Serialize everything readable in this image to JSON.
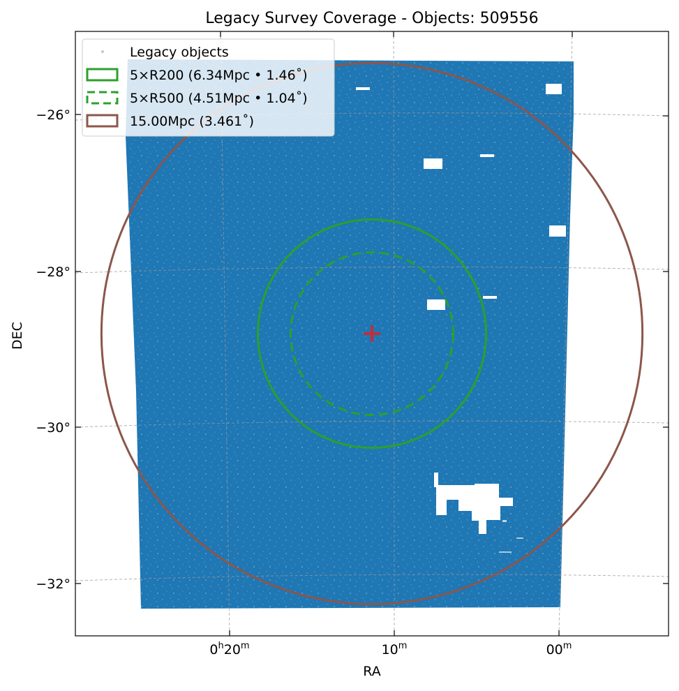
{
  "chart_data": {
    "type": "scatter",
    "title": "Legacy Survey Coverage - Objects: 509556",
    "xlabel": "RA",
    "ylabel": "DEC",
    "projection": "sky (RA decreasing to the right)",
    "grid": true,
    "legend_position": "top-left",
    "x_ticks": [
      {
        "label_main": "0",
        "label_sup1": "h",
        "label_mid": "20",
        "label_sup2": "m",
        "ra_min": 20
      },
      {
        "label_main": "",
        "label_sup1": "",
        "label_mid": "10",
        "label_sup2": "m",
        "ra_min": 10
      },
      {
        "label_main": "",
        "label_sup1": "",
        "label_mid": "00",
        "label_sup2": "m",
        "ra_min": 0
      }
    ],
    "y_ticks": [
      {
        "label": "−26°",
        "dec": -26
      },
      {
        "label": "−28°",
        "dec": -28
      },
      {
        "label": "−30°",
        "dec": -30
      },
      {
        "label": "−32°",
        "dec": -32
      }
    ],
    "center": {
      "ra_min": 11.4,
      "dec": -28.8,
      "marker": "+",
      "color": "#d62728"
    },
    "coverage": {
      "ra_min_range": [
        -0.7,
        26.5
      ],
      "dec_range": [
        -32.3,
        -25.25
      ],
      "color": "#1f77b4"
    },
    "legend": [
      {
        "label": "Legacy objects",
        "style": "points",
        "color": "#c8c8c8"
      },
      {
        "label": "5×R200 (6.34Mpc • 1.46˚)",
        "style": "solid",
        "color": "#2ca02c"
      },
      {
        "label": "5×R500 (4.51Mpc • 1.04˚)",
        "style": "dashed",
        "color": "#2ca02c"
      },
      {
        "label": "15.00Mpc (3.461˚)",
        "style": "solid",
        "color": "#8c564b"
      }
    ],
    "circles": [
      {
        "name": "5×R200",
        "radius_deg": 1.46,
        "radius_mpc": 6.34,
        "color": "#2ca02c",
        "style": "solid"
      },
      {
        "name": "5×R500",
        "radius_deg": 1.04,
        "radius_mpc": 4.51,
        "color": "#2ca02c",
        "style": "dashed"
      },
      {
        "name": "15.00Mpc",
        "radius_deg": 3.461,
        "radius_mpc": 15.0,
        "color": "#8c564b",
        "style": "solid"
      }
    ]
  }
}
